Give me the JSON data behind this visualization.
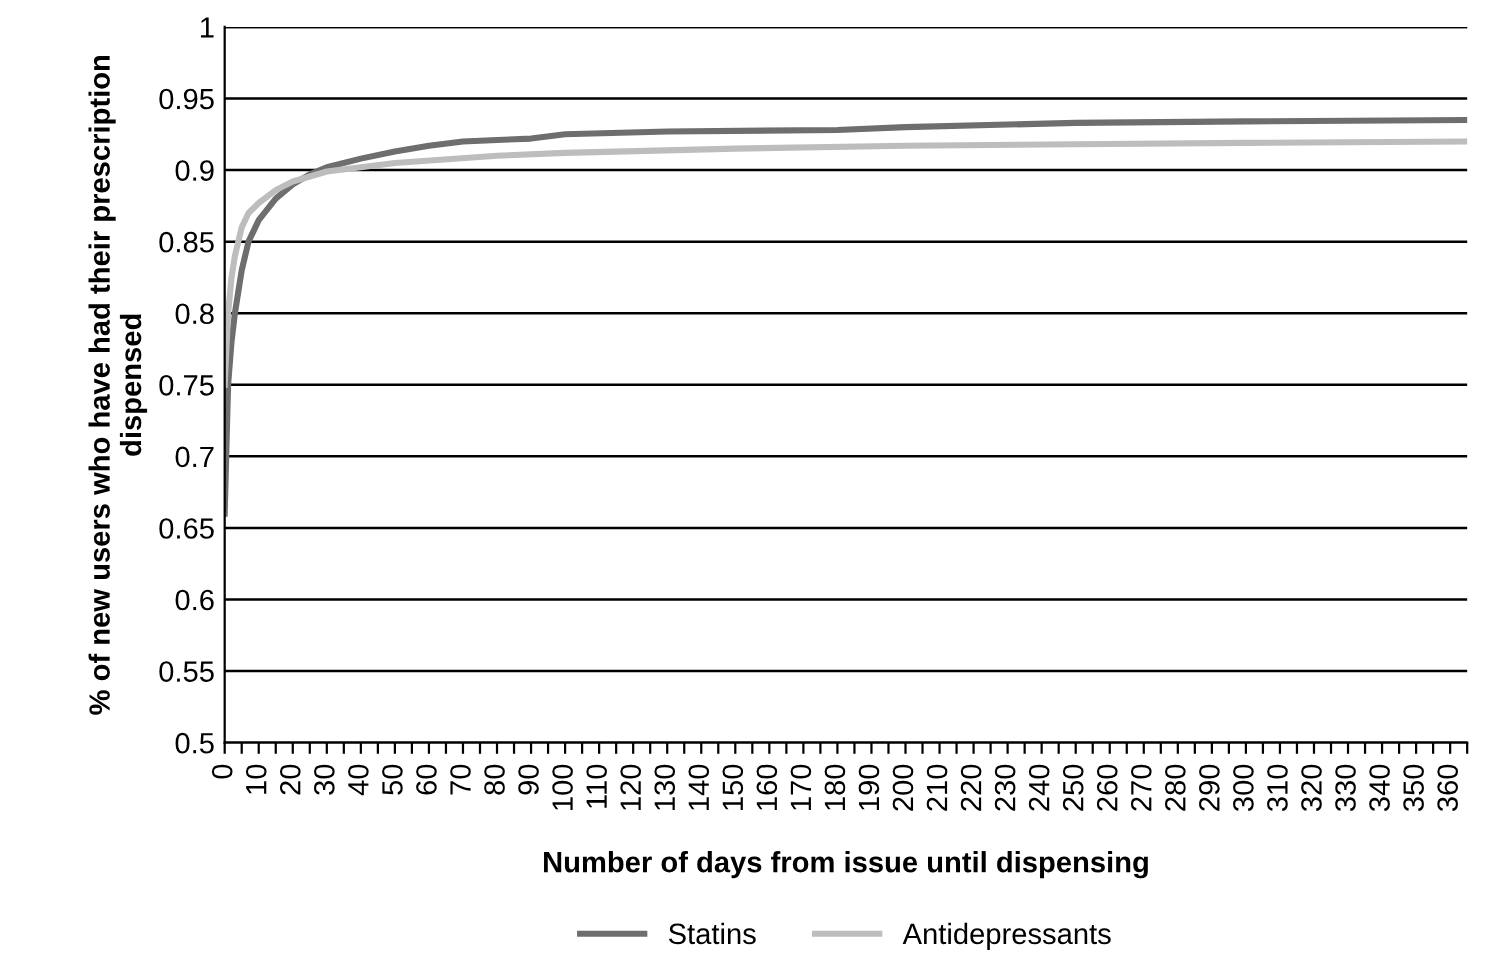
{
  "chart_data": {
    "type": "line",
    "xlabel": "Number of days from issue until dispensing",
    "ylabel": "% of new users who have had their prescription dispensed",
    "series": [
      {
        "name": "Statins",
        "color": "#6e6e6e",
        "x": [
          0,
          1,
          2,
          3,
          5,
          7,
          10,
          15,
          20,
          25,
          30,
          40,
          50,
          60,
          70,
          80,
          90,
          100,
          130,
          180,
          200,
          250,
          300,
          365
        ],
        "values": [
          0.66,
          0.75,
          0.78,
          0.8,
          0.83,
          0.85,
          0.865,
          0.88,
          0.89,
          0.897,
          0.902,
          0.908,
          0.913,
          0.917,
          0.92,
          0.921,
          0.922,
          0.925,
          0.927,
          0.928,
          0.93,
          0.933,
          0.934,
          0.935
        ]
      },
      {
        "name": "Antidepressants",
        "color": "#bdbdbd",
        "x": [
          0,
          1,
          2,
          3,
          5,
          7,
          10,
          15,
          20,
          30,
          50,
          80,
          100,
          150,
          200,
          250,
          300,
          365
        ],
        "values": [
          0.75,
          0.8,
          0.825,
          0.84,
          0.86,
          0.87,
          0.877,
          0.886,
          0.892,
          0.899,
          0.905,
          0.91,
          0.912,
          0.915,
          0.917,
          0.918,
          0.919,
          0.92
        ]
      }
    ],
    "xlim": [
      0,
      365
    ],
    "xticks": [
      0,
      {
        "value": 5,
        "label": null
      },
      10,
      {
        "value": 15,
        "label": null
      },
      20,
      {
        "value": 25,
        "label": null
      },
      30,
      {
        "value": 35,
        "label": null
      },
      40,
      {
        "value": 45,
        "label": null
      },
      50,
      {
        "value": 55,
        "label": null
      },
      60,
      {
        "value": 65,
        "label": null
      },
      70,
      {
        "value": 75,
        "label": null
      },
      80,
      {
        "value": 85,
        "label": null
      },
      90,
      {
        "value": 95,
        "label": null
      },
      100,
      {
        "value": 105,
        "label": null
      },
      110,
      {
        "value": 115,
        "label": null
      },
      120,
      {
        "value": 125,
        "label": null
      },
      130,
      {
        "value": 135,
        "label": null
      },
      140,
      {
        "value": 145,
        "label": null
      },
      150,
      {
        "value": 155,
        "label": null
      },
      160,
      {
        "value": 165,
        "label": null
      },
      170,
      {
        "value": 175,
        "label": null
      },
      180,
      {
        "value": 185,
        "label": null
      },
      190,
      {
        "value": 195,
        "label": null
      },
      200,
      {
        "value": 205,
        "label": null
      },
      210,
      {
        "value": 215,
        "label": null
      },
      220,
      {
        "value": 225,
        "label": null
      },
      230,
      {
        "value": 235,
        "label": null
      },
      240,
      {
        "value": 245,
        "label": null
      },
      250,
      {
        "value": 255,
        "label": null
      },
      260,
      {
        "value": 265,
        "label": null
      },
      270,
      {
        "value": 275,
        "label": null
      },
      280,
      {
        "value": 285,
        "label": null
      },
      290,
      {
        "value": 295,
        "label": null
      },
      300,
      {
        "value": 305,
        "label": null
      },
      310,
      {
        "value": 315,
        "label": null
      },
      320,
      {
        "value": 325,
        "label": null
      },
      330,
      {
        "value": 335,
        "label": null
      },
      340,
      {
        "value": 345,
        "label": null
      },
      350,
      {
        "value": 355,
        "label": null
      },
      360,
      {
        "value": 365,
        "label": null
      }
    ],
    "ylim": [
      0.5,
      1
    ],
    "yticks": [
      0.5,
      0.55,
      0.6,
      0.65,
      0.7,
      0.75,
      0.8,
      0.85,
      0.9,
      0.95,
      1
    ],
    "grid": "y",
    "legend": "bottom",
    "marker": "none",
    "line_style": "solid"
  }
}
